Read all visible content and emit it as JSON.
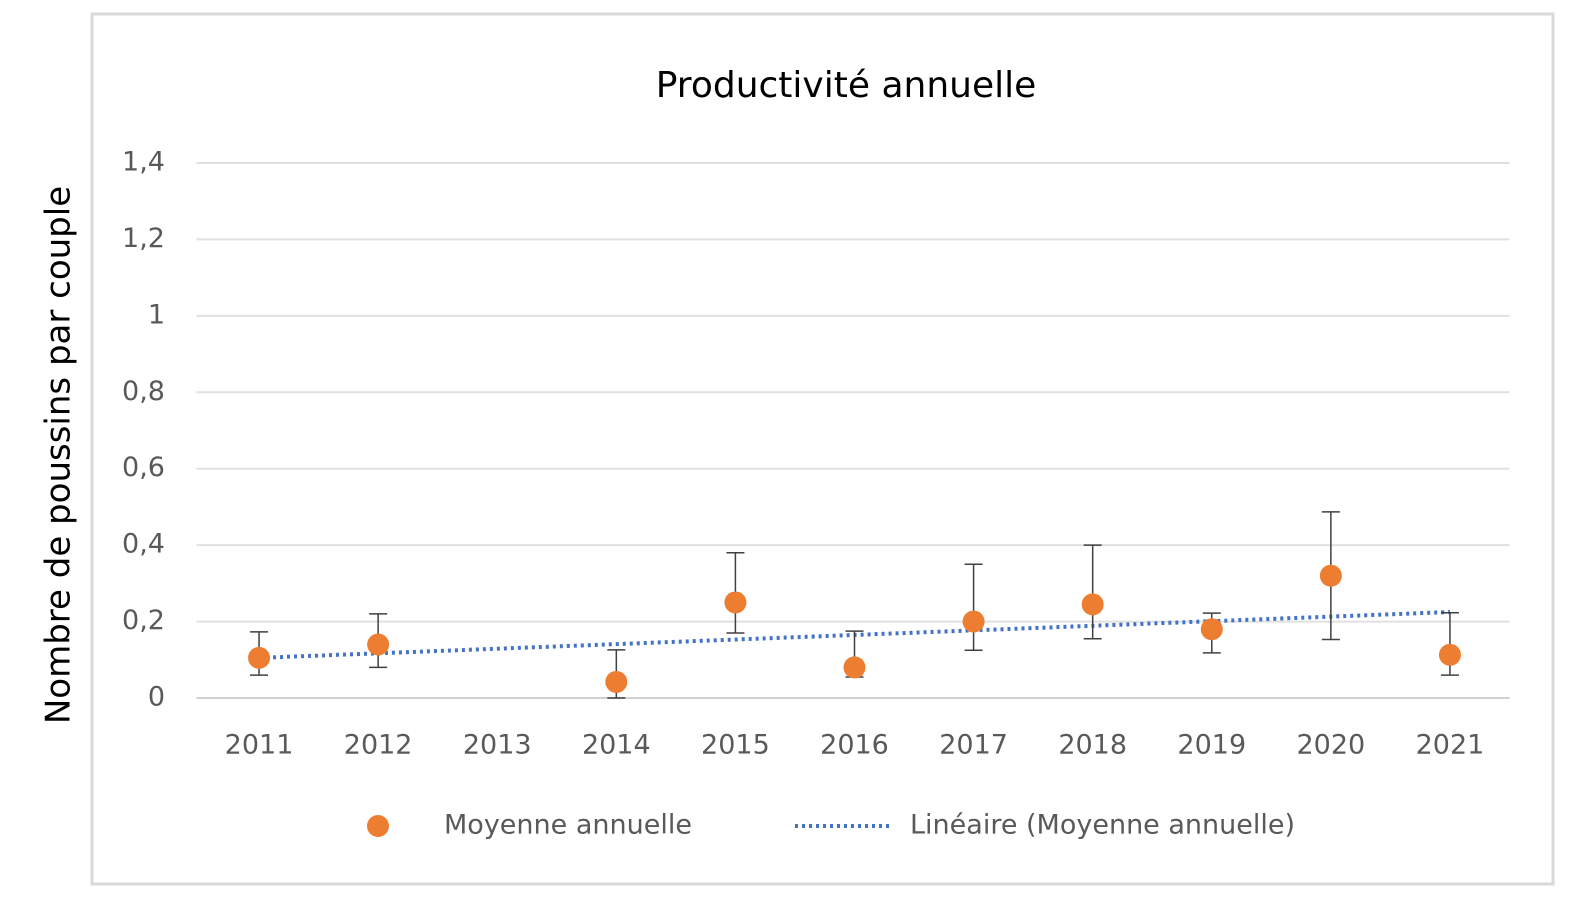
{
  "chart_data": {
    "type": "scatter",
    "title": "Productivité annuelle",
    "y_label": "Nombre de poussins par couple",
    "categories": [
      "2011",
      "2012",
      "2013",
      "2014",
      "2015",
      "2016",
      "2017",
      "2018",
      "2019",
      "2020",
      "2021"
    ],
    "series": [
      {
        "name": "Moyenne annuelle",
        "color": "#ed7d31",
        "values": [
          0.105,
          0.14,
          null,
          0.042,
          0.25,
          0.08,
          0.2,
          0.245,
          0.18,
          0.32,
          0.113
        ],
        "error_plus": [
          0.068,
          0.08,
          null,
          0.084,
          0.13,
          0.095,
          0.15,
          0.155,
          0.042,
          0.167,
          0.11
        ],
        "error_minus": [
          0.045,
          0.06,
          null,
          0.042,
          0.08,
          0.025,
          0.075,
          0.09,
          0.062,
          0.167,
          0.053
        ]
      }
    ],
    "trendline": {
      "name": "Linéaire (Moyenne annuelle)",
      "color": "#4472c4",
      "start": 0.105,
      "end": 0.225
    },
    "ylim": [
      0,
      1.4
    ],
    "yticks": [
      0,
      {
        "value": 0.2,
        "label": "0,2"
      },
      {
        "value": 0.4,
        "label": "0,4"
      },
      {
        "value": 0.6,
        "label": "0,6"
      },
      {
        "value": 0.8,
        "label": "0,8"
      },
      1,
      {
        "value": 1.2,
        "label": "1,2"
      },
      {
        "value": 1.4,
        "label": "1,4"
      }
    ],
    "grid": true,
    "legend": "bottom"
  }
}
